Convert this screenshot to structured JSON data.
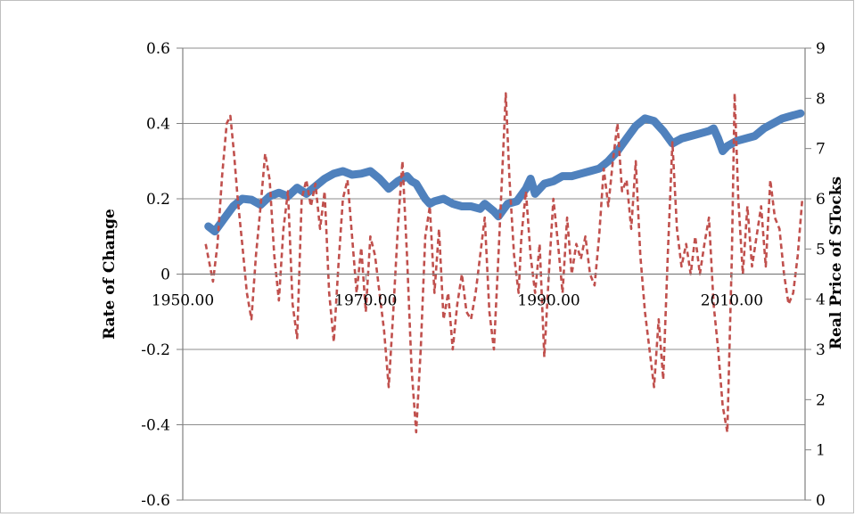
{
  "chart_data": {
    "type": "line",
    "title": "",
    "xlabel": "",
    "ylabel": "Rate of Change",
    "y2label": "Real Price of STocks",
    "grid": true,
    "legend": "none",
    "xlim": [
      1950,
      2018
    ],
    "ylim": [
      -0.6,
      0.6
    ],
    "y2lim": [
      0,
      9
    ],
    "x_crosses_at": 0,
    "x_ticks": [
      1950,
      1970,
      1990,
      2010
    ],
    "x_tick_labels": [
      "1950.00",
      "1970.00",
      "1990.00",
      "2010.00"
    ],
    "y_ticks": [
      -0.6,
      -0.4,
      -0.2,
      0,
      0.2,
      0.4,
      0.6
    ],
    "y_tick_labels": [
      "-0.6",
      "-0.4",
      "-0.2",
      "0",
      "0.2",
      "0.4",
      "0.6"
    ],
    "y2_ticks": [
      0,
      1,
      2,
      3,
      4,
      5,
      6,
      7,
      8,
      9
    ],
    "y2_tick_labels": [
      "0",
      "1",
      "2",
      "3",
      "4",
      "5",
      "6",
      "7",
      "8",
      "9"
    ],
    "series": [
      {
        "axis": "right",
        "style": "solid-thick",
        "color": "#4F81BD",
        "points": [
          [
            1952.8,
            5.45
          ],
          [
            1953.5,
            5.35
          ],
          [
            1954.5,
            5.6
          ],
          [
            1955.5,
            5.85
          ],
          [
            1956.5,
            6.0
          ],
          [
            1957.5,
            5.98
          ],
          [
            1958.5,
            5.88
          ],
          [
            1959.5,
            6.05
          ],
          [
            1960.5,
            6.12
          ],
          [
            1961.5,
            6.05
          ],
          [
            1962.5,
            6.22
          ],
          [
            1963.5,
            6.1
          ],
          [
            1964.5,
            6.25
          ],
          [
            1965.5,
            6.4
          ],
          [
            1966.5,
            6.5
          ],
          [
            1967.5,
            6.55
          ],
          [
            1968.5,
            6.48
          ],
          [
            1969.5,
            6.5
          ],
          [
            1970.5,
            6.55
          ],
          [
            1971.5,
            6.4
          ],
          [
            1972.5,
            6.2
          ],
          [
            1973.5,
            6.35
          ],
          [
            1974.5,
            6.45
          ],
          [
            1975.0,
            6.35
          ],
          [
            1975.5,
            6.3
          ],
          [
            1976.5,
            6.0
          ],
          [
            1977.0,
            5.9
          ],
          [
            1977.5,
            5.95
          ],
          [
            1978.5,
            6.0
          ],
          [
            1979.5,
            5.9
          ],
          [
            1980.5,
            5.85
          ],
          [
            1981.5,
            5.85
          ],
          [
            1982.5,
            5.8
          ],
          [
            1983.0,
            5.9
          ],
          [
            1984.0,
            5.75
          ],
          [
            1984.5,
            5.65
          ],
          [
            1985.5,
            5.9
          ],
          [
            1986.5,
            5.95
          ],
          [
            1987.5,
            6.2
          ],
          [
            1988.0,
            6.4
          ],
          [
            1988.5,
            6.1
          ],
          [
            1989.5,
            6.3
          ],
          [
            1990.5,
            6.35
          ],
          [
            1991.5,
            6.45
          ],
          [
            1992.5,
            6.45
          ],
          [
            1993.5,
            6.5
          ],
          [
            1994.5,
            6.55
          ],
          [
            1995.5,
            6.6
          ],
          [
            1996.5,
            6.75
          ],
          [
            1997.5,
            6.95
          ],
          [
            1998.5,
            7.2
          ],
          [
            1999.5,
            7.45
          ],
          [
            2000.5,
            7.6
          ],
          [
            2001.5,
            7.55
          ],
          [
            2002.5,
            7.35
          ],
          [
            2003.5,
            7.1
          ],
          [
            2004.5,
            7.2
          ],
          [
            2005.5,
            7.25
          ],
          [
            2006.5,
            7.3
          ],
          [
            2007.5,
            7.35
          ],
          [
            2008.0,
            7.4
          ],
          [
            2008.5,
            7.2
          ],
          [
            2009.0,
            6.95
          ],
          [
            2009.5,
            7.05
          ],
          [
            2010.5,
            7.15
          ],
          [
            2011.5,
            7.2
          ],
          [
            2012.5,
            7.25
          ],
          [
            2013.5,
            7.4
          ],
          [
            2014.5,
            7.5
          ],
          [
            2015.5,
            7.6
          ],
          [
            2016.5,
            7.65
          ],
          [
            2017.5,
            7.7
          ]
        ]
      },
      {
        "axis": "left",
        "style": "dashed",
        "color": "#C0504D",
        "points": [
          [
            1952.5,
            0.08
          ],
          [
            1953.3,
            -0.02
          ],
          [
            1953.8,
            0.08
          ],
          [
            1954.3,
            0.26
          ],
          [
            1954.8,
            0.4
          ],
          [
            1955.2,
            0.42
          ],
          [
            1955.6,
            0.32
          ],
          [
            1956.0,
            0.2
          ],
          [
            1956.5,
            0.08
          ],
          [
            1957.0,
            -0.05
          ],
          [
            1957.5,
            -0.12
          ],
          [
            1958.0,
            0.05
          ],
          [
            1958.5,
            0.18
          ],
          [
            1959.0,
            0.32
          ],
          [
            1959.5,
            0.25
          ],
          [
            1960.0,
            0.05
          ],
          [
            1960.5,
            -0.07
          ],
          [
            1961.0,
            0.12
          ],
          [
            1961.5,
            0.22
          ],
          [
            1962.0,
            -0.08
          ],
          [
            1962.5,
            -0.17
          ],
          [
            1963.0,
            0.2
          ],
          [
            1963.5,
            0.25
          ],
          [
            1964.0,
            0.18
          ],
          [
            1964.5,
            0.24
          ],
          [
            1965.0,
            0.12
          ],
          [
            1965.5,
            0.22
          ],
          [
            1966.0,
            -0.05
          ],
          [
            1966.5,
            -0.18
          ],
          [
            1967.0,
            0.02
          ],
          [
            1967.5,
            0.2
          ],
          [
            1968.0,
            0.25
          ],
          [
            1968.5,
            0.1
          ],
          [
            1969.0,
            -0.05
          ],
          [
            1969.5,
            0.07
          ],
          [
            1970.0,
            -0.1
          ],
          [
            1970.5,
            0.1
          ],
          [
            1971.0,
            0.05
          ],
          [
            1971.5,
            -0.05
          ],
          [
            1972.0,
            -0.15
          ],
          [
            1972.5,
            -0.3
          ],
          [
            1973.0,
            -0.1
          ],
          [
            1973.5,
            0.12
          ],
          [
            1974.0,
            0.3
          ],
          [
            1974.5,
            0.05
          ],
          [
            1975.0,
            -0.25
          ],
          [
            1975.5,
            -0.42
          ],
          [
            1976.0,
            -0.2
          ],
          [
            1976.5,
            0.1
          ],
          [
            1977.0,
            0.18
          ],
          [
            1977.5,
            -0.05
          ],
          [
            1978.0,
            0.12
          ],
          [
            1978.5,
            -0.12
          ],
          [
            1979.0,
            -0.05
          ],
          [
            1979.5,
            -0.2
          ],
          [
            1980.0,
            -0.08
          ],
          [
            1980.5,
            0.0
          ],
          [
            1981.0,
            -0.1
          ],
          [
            1981.5,
            -0.12
          ],
          [
            1982.0,
            -0.05
          ],
          [
            1982.5,
            0.05
          ],
          [
            1983.0,
            0.15
          ],
          [
            1983.5,
            -0.1
          ],
          [
            1984.0,
            -0.2
          ],
          [
            1984.5,
            0.05
          ],
          [
            1985.0,
            0.32
          ],
          [
            1985.3,
            0.48
          ],
          [
            1985.7,
            0.25
          ],
          [
            1986.2,
            0.05
          ],
          [
            1986.7,
            -0.05
          ],
          [
            1987.0,
            0.1
          ],
          [
            1987.5,
            0.22
          ],
          [
            1988.0,
            0.05
          ],
          [
            1988.5,
            -0.05
          ],
          [
            1989.0,
            0.08
          ],
          [
            1989.5,
            -0.22
          ],
          [
            1990.0,
            0.0
          ],
          [
            1990.5,
            0.2
          ],
          [
            1991.0,
            0.08
          ],
          [
            1991.5,
            -0.05
          ],
          [
            1992.0,
            0.15
          ],
          [
            1992.5,
            0.0
          ],
          [
            1993.0,
            0.08
          ],
          [
            1993.5,
            0.04
          ],
          [
            1994.0,
            0.1
          ],
          [
            1994.5,
            0.0
          ],
          [
            1995.0,
            -0.03
          ],
          [
            1995.5,
            0.1
          ],
          [
            1996.0,
            0.28
          ],
          [
            1996.5,
            0.18
          ],
          [
            1997.0,
            0.3
          ],
          [
            1997.5,
            0.4
          ],
          [
            1998.0,
            0.22
          ],
          [
            1998.5,
            0.25
          ],
          [
            1999.0,
            0.12
          ],
          [
            1999.5,
            0.3
          ],
          [
            2000.0,
            0.05
          ],
          [
            2000.5,
            -0.1
          ],
          [
            2001.0,
            -0.2
          ],
          [
            2001.5,
            -0.3
          ],
          [
            2002.0,
            -0.12
          ],
          [
            2002.5,
            -0.28
          ],
          [
            2003.0,
            0.05
          ],
          [
            2003.5,
            0.35
          ],
          [
            2004.0,
            0.12
          ],
          [
            2004.5,
            0.02
          ],
          [
            2005.0,
            0.08
          ],
          [
            2005.5,
            0.0
          ],
          [
            2006.0,
            0.1
          ],
          [
            2006.5,
            0.0
          ],
          [
            2007.0,
            0.08
          ],
          [
            2007.5,
            0.15
          ],
          [
            2008.0,
            -0.08
          ],
          [
            2008.5,
            -0.2
          ],
          [
            2009.0,
            -0.35
          ],
          [
            2009.5,
            -0.42
          ],
          [
            2010.0,
            0.05
          ],
          [
            2010.3,
            0.48
          ],
          [
            2010.7,
            0.2
          ],
          [
            2011.2,
            0.0
          ],
          [
            2011.7,
            0.18
          ],
          [
            2012.2,
            0.02
          ],
          [
            2012.7,
            0.1
          ],
          [
            2013.2,
            0.18
          ],
          [
            2013.7,
            0.02
          ],
          [
            2014.2,
            0.25
          ],
          [
            2014.7,
            0.15
          ],
          [
            2015.2,
            0.12
          ],
          [
            2015.7,
            0.0
          ],
          [
            2016.2,
            -0.08
          ],
          [
            2016.7,
            -0.05
          ],
          [
            2017.2,
            0.05
          ],
          [
            2017.7,
            0.2
          ]
        ]
      }
    ]
  }
}
